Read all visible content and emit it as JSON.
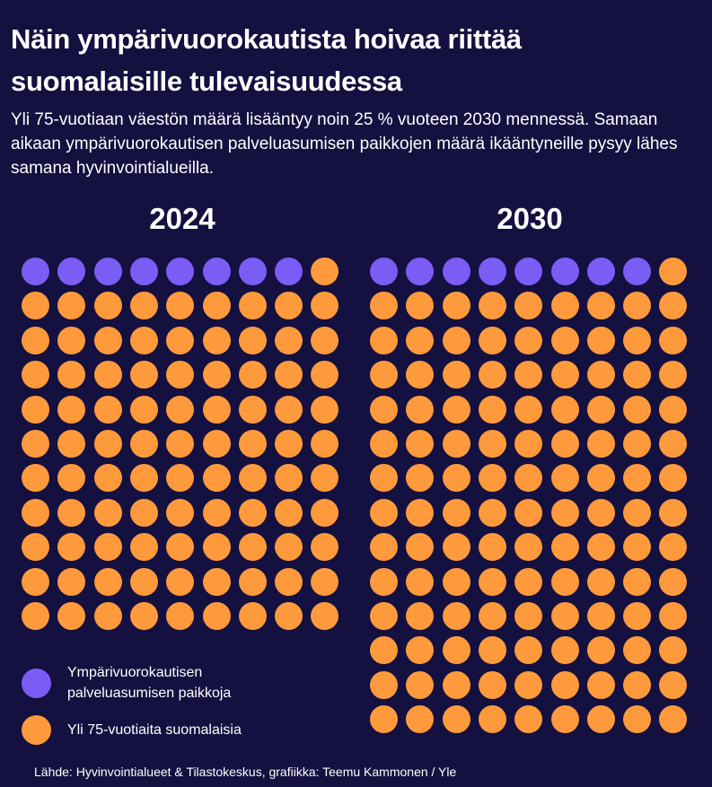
{
  "title": "Näin ympärivuorokautista hoivaa riittää suomalaisille tulevaisuudessa",
  "subtitle": "Yli 75-vuotiaan väestön määrä lisääntyy noin 25 % vuoteen 2030 mennessä. Samaan aikaan ympärivuorokautisen palveluasumisen paikkojen määrä ikääntyneille pysyy lähes samana hyvinvointialueilla.",
  "source": "Lähde: Hyvinvointialueet & Tilastokeskus, grafiikka: Teemu Kammonen / Yle",
  "colors": {
    "background": "#141040",
    "places": "#7b5cf5",
    "elderly": "#ff9a3c"
  },
  "chart_data": {
    "type": "waffle",
    "columns": 9,
    "series": [
      {
        "name": "Ympärivuorokautisen palveluasumisen paikkoja",
        "color": "#7b5cf5"
      },
      {
        "name": "Yli 75-vuotiaita suomalaisia",
        "color": "#ff9a3c"
      }
    ],
    "panels": [
      {
        "year": "2024",
        "places": 8,
        "elderly": 91
      },
      {
        "year": "2030",
        "places": 8,
        "elderly": 118
      }
    ]
  }
}
